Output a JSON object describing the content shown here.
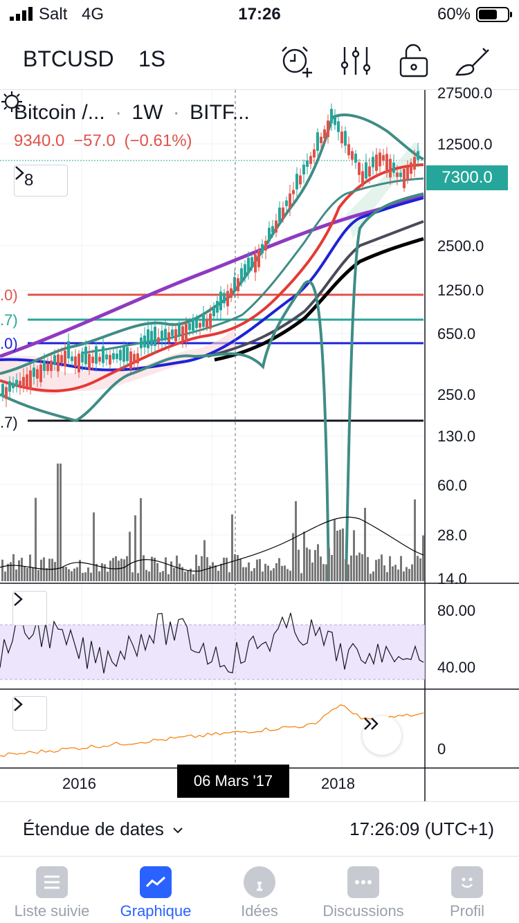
{
  "status": {
    "carrier": "Salt",
    "network": "4G",
    "time": "17:26",
    "battery": "60%",
    "battery_level": 0.6
  },
  "toolbar": {
    "symbol": "BTCUSD",
    "interval": "1S",
    "icons": [
      "alarm-add-icon",
      "indicators-icon",
      "unlock-icon",
      "drawing-brush-icon"
    ]
  },
  "legend": {
    "title": "Bitcoin /...",
    "interval": "1W",
    "exchange": "BITF...",
    "sep": "·",
    "price": "9340.0",
    "change": "−57.0",
    "change_pct": "(−0.61%)",
    "indicator_count": "8"
  },
  "price_axis": {
    "current_price": "7300.0",
    "ticks": [
      "27500.0",
      "12500.0",
      "2500.0",
      "1250.0",
      "650.0",
      "250.0",
      "130.0",
      "60.0",
      "28.0",
      "14.0"
    ]
  },
  "rsi_axis": {
    "ticks": [
      "80.00",
      "40.00"
    ]
  },
  "osc_axis": {
    "ticks": [
      "0"
    ]
  },
  "time_axis": {
    "ticks": [
      "2016",
      "2018"
    ],
    "crosshair_date": "06 Mars '17"
  },
  "left_tags": [
    {
      "text": ".0)",
      "color": "#e0524a"
    },
    {
      "text": ".7)",
      "color": "#26a69a"
    },
    {
      "text": ".0)",
      "color": "#1e22d6"
    },
    {
      "text": ".7)",
      "color": "#131722"
    }
  ],
  "range_bar": {
    "label": "Étendue de dates",
    "time": "17:26:09 (UTC+1)"
  },
  "tabs": [
    {
      "label": "Liste suivie",
      "icon": "watchlist-icon",
      "active": false
    },
    {
      "label": "Graphique",
      "icon": "chart-icon",
      "active": true
    },
    {
      "label": "Idées",
      "icon": "ideas-icon",
      "active": false
    },
    {
      "label": "Discussions",
      "icon": "chat-icon",
      "active": false
    },
    {
      "label": "Profil",
      "icon": "profile-icon",
      "active": false
    }
  ],
  "colors": {
    "up": "#26a69a",
    "down": "#e0524a",
    "accent": "#2962ff",
    "ma_red": "#e53935",
    "ma_blue": "#1e22d6",
    "ma_purple": "#8e3ac1",
    "rsi_line": "#131722",
    "osc_line": "#f57c00"
  }
}
